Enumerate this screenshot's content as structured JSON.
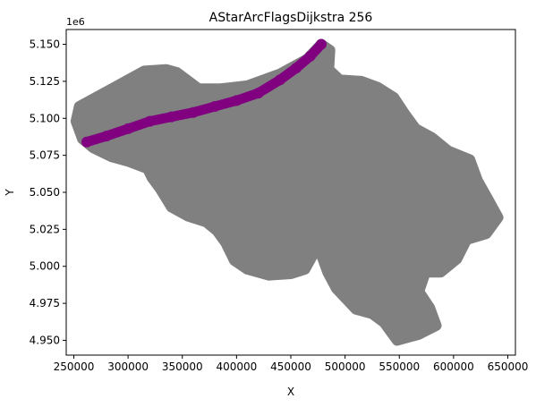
{
  "chart_data": {
    "type": "scatter",
    "title": "AStarArcFlagsDijkstra 256",
    "xlabel": "X",
    "ylabel": "Y",
    "y_offset_label": "1e6",
    "xlim": [
      243000,
      657000
    ],
    "ylim": [
      4940000,
      5160000
    ],
    "x_ticks": [
      250000,
      300000,
      350000,
      400000,
      450000,
      500000,
      550000,
      600000,
      650000
    ],
    "x_tick_labels": [
      "250000",
      "300000",
      "350000",
      "400000",
      "450000",
      "500000",
      "550000",
      "600000",
      "650000"
    ],
    "y_ticks": [
      4950000,
      4975000,
      5000000,
      5025000,
      5050000,
      5075000,
      5100000,
      5125000,
      5150000
    ],
    "y_tick_labels": [
      "4.950",
      "4.975",
      "5.000",
      "5.025",
      "5.050",
      "5.075",
      "5.100",
      "5.125",
      "5.150"
    ],
    "grid": false,
    "series": [
      {
        "role": "all nodes",
        "color": "#808080",
        "outline": [
          [
            255000,
            5108000
          ],
          [
            280000,
            5118000
          ],
          [
            300000,
            5126000
          ],
          [
            315000,
            5132000
          ],
          [
            335000,
            5133000
          ],
          [
            345000,
            5131000
          ],
          [
            365000,
            5120000
          ],
          [
            385000,
            5120000
          ],
          [
            410000,
            5122000
          ],
          [
            440000,
            5130000
          ],
          [
            465000,
            5140000
          ],
          [
            478000,
            5150000
          ],
          [
            486000,
            5146000
          ],
          [
            485000,
            5133000
          ],
          [
            495000,
            5126000
          ],
          [
            515000,
            5125000
          ],
          [
            530000,
            5121000
          ],
          [
            545000,
            5114000
          ],
          [
            555000,
            5103000
          ],
          [
            565000,
            5093000
          ],
          [
            580000,
            5087000
          ],
          [
            595000,
            5078000
          ],
          [
            615000,
            5072000
          ],
          [
            622000,
            5058000
          ],
          [
            632000,
            5045000
          ],
          [
            641000,
            5033000
          ],
          [
            630000,
            5022000
          ],
          [
            612000,
            5018000
          ],
          [
            603000,
            5005000
          ],
          [
            588000,
            4996000
          ],
          [
            574000,
            4996000
          ],
          [
            568000,
            4983000
          ],
          [
            578000,
            4972000
          ],
          [
            584000,
            4960000
          ],
          [
            568000,
            4954000
          ],
          [
            548000,
            4950000
          ],
          [
            536000,
            4962000
          ],
          [
            525000,
            4968000
          ],
          [
            510000,
            4971000
          ],
          [
            492000,
            4985000
          ],
          [
            484000,
            4996000
          ],
          [
            478000,
            5008000
          ],
          [
            472000,
            5010000
          ],
          [
            463000,
            4998000
          ],
          [
            450000,
            4995000
          ],
          [
            430000,
            4994000
          ],
          [
            410000,
            4998000
          ],
          [
            398000,
            5004000
          ],
          [
            390000,
            5016000
          ],
          [
            382000,
            5024000
          ],
          [
            372000,
            5030000
          ],
          [
            355000,
            5034000
          ],
          [
            340000,
            5040000
          ],
          [
            330000,
            5052000
          ],
          [
            322000,
            5060000
          ],
          [
            318000,
            5066000
          ],
          [
            300000,
            5071000
          ],
          [
            285000,
            5074000
          ],
          [
            268000,
            5080000
          ],
          [
            258000,
            5086000
          ],
          [
            252000,
            5098000
          ]
        ]
      },
      {
        "role": "visited nodes",
        "color": "#800080",
        "path": [
          [
            262000,
            5084000
          ],
          [
            280000,
            5088000
          ],
          [
            300000,
            5093000
          ],
          [
            320000,
            5098000
          ],
          [
            340000,
            5101000
          ],
          [
            360000,
            5104000
          ],
          [
            380000,
            5108000
          ],
          [
            400000,
            5112000
          ],
          [
            420000,
            5117000
          ],
          [
            440000,
            5126000
          ],
          [
            455000,
            5134000
          ],
          [
            468000,
            5142000
          ],
          [
            478000,
            5150000
          ]
        ]
      }
    ]
  }
}
